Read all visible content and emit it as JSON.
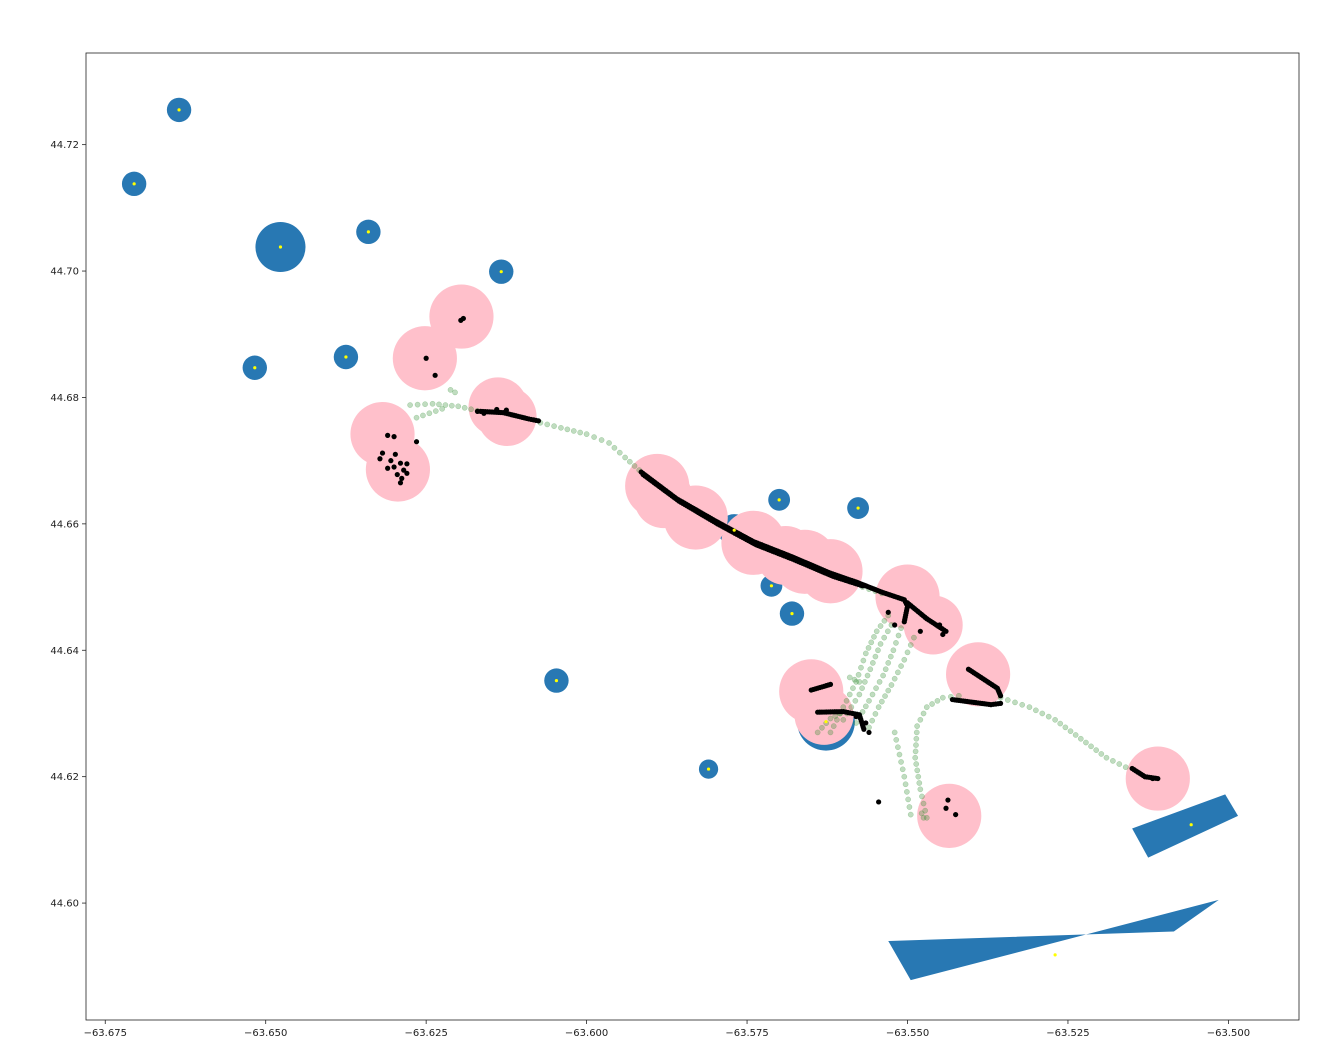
{
  "chart_data": {
    "type": "scatter",
    "title": "",
    "xlabel": "",
    "ylabel": "",
    "xlim": [
      -63.678,
      -63.489
    ],
    "ylim": [
      44.5815,
      44.7345
    ],
    "grid": false,
    "x_ticks": [
      -63.675,
      -63.65,
      -63.625,
      -63.6,
      -63.575,
      -63.55,
      -63.525,
      -63.5
    ],
    "x_tick_labels": [
      "−63.675",
      "−63.650",
      "−63.625",
      "−63.600",
      "−63.575",
      "−63.550",
      "−63.525",
      "−63.500"
    ],
    "y_ticks": [
      44.6,
      44.62,
      44.64,
      44.66,
      44.68,
      44.7,
      44.72
    ],
    "y_tick_labels": [
      "44.60",
      "44.62",
      "44.64",
      "44.66",
      "44.68",
      "44.70",
      "44.72"
    ],
    "colors": {
      "region": "#2878b3",
      "centroid": "#ffff00",
      "cluster": "#ffc0cb",
      "stop_point": "#000000",
      "gps_trace": "#2e8b2e"
    },
    "regions_circles": [
      {
        "x": -63.6635,
        "y": 44.7255,
        "r": 0.0019
      },
      {
        "x": -63.6705,
        "y": 44.7138,
        "r": 0.0019
      },
      {
        "x": -63.6477,
        "y": 44.7038,
        "r": 0.0039
      },
      {
        "x": -63.634,
        "y": 44.7062,
        "r": 0.0019
      },
      {
        "x": -63.6133,
        "y": 44.6999,
        "r": 0.0019
      },
      {
        "x": -63.6517,
        "y": 44.6847,
        "r": 0.0019
      },
      {
        "x": -63.6375,
        "y": 44.6864,
        "r": 0.0019
      },
      {
        "x": -63.57,
        "y": 44.6638,
        "r": 0.0017
      },
      {
        "x": -63.5577,
        "y": 44.6625,
        "r": 0.0017
      },
      {
        "x": -63.5712,
        "y": 44.6502,
        "r": 0.0017
      },
      {
        "x": -63.568,
        "y": 44.6458,
        "r": 0.0019
      },
      {
        "x": -63.6047,
        "y": 44.6352,
        "r": 0.0019
      },
      {
        "x": -63.581,
        "y": 44.6212,
        "r": 0.0015
      },
      {
        "x": -63.5627,
        "y": 44.6287,
        "r": 0.0045
      },
      {
        "x": -63.577,
        "y": 44.659,
        "r": 0.0025
      }
    ],
    "regions_polygons": [
      {
        "points": [
          [
            -63.515,
            44.6118
          ],
          [
            -63.5005,
            44.6172
          ],
          [
            -63.4985,
            44.6138
          ],
          [
            -63.5125,
            44.6072
          ]
        ],
        "centroid": [
          -63.5058,
          44.6124
        ]
      },
      {
        "points": [
          [
            -63.553,
            44.594
          ],
          [
            -63.5085,
            44.5955
          ],
          [
            -63.5015,
            44.6005
          ],
          [
            -63.5495,
            44.5878
          ]
        ],
        "centroid": [
          -63.527,
          44.5918
        ]
      }
    ],
    "clusters": [
      {
        "x": -63.6195,
        "y": 44.6928,
        "r": 0.005
      },
      {
        "x": -63.6252,
        "y": 44.6862,
        "r": 0.005
      },
      {
        "x": -63.6138,
        "y": 44.6785,
        "r": 0.0046
      },
      {
        "x": -63.6124,
        "y": 44.677,
        "r": 0.0046
      },
      {
        "x": -63.6318,
        "y": 44.6742,
        "r": 0.005
      },
      {
        "x": -63.6294,
        "y": 44.6686,
        "r": 0.005
      },
      {
        "x": -63.589,
        "y": 44.666,
        "r": 0.005
      },
      {
        "x": -63.588,
        "y": 44.664,
        "r": 0.0046
      },
      {
        "x": -63.583,
        "y": 44.661,
        "r": 0.005
      },
      {
        "x": -63.574,
        "y": 44.657,
        "r": 0.005
      },
      {
        "x": -63.569,
        "y": 44.655,
        "r": 0.0046
      },
      {
        "x": -63.566,
        "y": 44.654,
        "r": 0.005
      },
      {
        "x": -63.562,
        "y": 44.6525,
        "r": 0.005
      },
      {
        "x": -63.55,
        "y": 44.6485,
        "r": 0.005
      },
      {
        "x": -63.546,
        "y": 44.644,
        "r": 0.0046
      },
      {
        "x": -63.539,
        "y": 44.6362,
        "r": 0.005
      },
      {
        "x": -63.565,
        "y": 44.6335,
        "r": 0.005
      },
      {
        "x": -63.563,
        "y": 44.6297,
        "r": 0.0046
      },
      {
        "x": -63.5435,
        "y": 44.6138,
        "r": 0.005
      },
      {
        "x": -63.511,
        "y": 44.6197,
        "r": 0.005
      }
    ],
    "stop_paths": [
      [
        [
          -63.5915,
          44.6682
        ],
        [
          -63.586,
          44.664
        ],
        [
          -63.58,
          44.6605
        ],
        [
          -63.574,
          44.6572
        ],
        [
          -63.568,
          44.6548
        ],
        [
          -63.562,
          44.6522
        ],
        [
          -63.558,
          44.6508
        ],
        [
          -63.554,
          44.6492
        ],
        [
          -63.5505,
          44.648
        ],
        [
          -63.55,
          44.647
        ],
        [
          -63.5505,
          44.6445
        ]
      ],
      [
        [
          -63.5912,
          44.6678
        ],
        [
          -63.5856,
          44.6636
        ],
        [
          -63.5796,
          44.66
        ],
        [
          -63.5736,
          44.6567
        ],
        [
          -63.5676,
          44.6543
        ],
        [
          -63.5616,
          44.6517
        ],
        [
          -63.557,
          44.6502
        ]
      ],
      [
        [
          -63.55,
          44.6475
        ],
        [
          -63.547,
          44.645
        ],
        [
          -63.544,
          44.643
        ]
      ],
      [
        [
          -63.5405,
          44.637
        ],
        [
          -63.536,
          44.634
        ],
        [
          -63.5355,
          44.6328
        ]
      ],
      [
        [
          -63.543,
          44.6322
        ],
        [
          -63.537,
          44.6314
        ],
        [
          -63.5355,
          44.6316
        ]
      ],
      [
        [
          -63.565,
          44.6337
        ],
        [
          -63.562,
          44.6346
        ]
      ],
      [
        [
          -63.564,
          44.6302
        ],
        [
          -63.56,
          44.6303
        ],
        [
          -63.5575,
          44.6298
        ],
        [
          -63.5568,
          44.6275
        ]
      ],
      [
        [
          -63.6165,
          44.6778
        ],
        [
          -63.613,
          44.6776
        ],
        [
          -63.609,
          44.6766
        ],
        [
          -63.6075,
          44.6763
        ]
      ],
      [
        [
          -63.515,
          44.6213
        ],
        [
          -63.513,
          44.62
        ],
        [
          -63.511,
          44.6197
        ]
      ]
    ],
    "stop_points": [
      [
        -63.6192,
        44.6925
      ],
      [
        -63.6196,
        44.6922
      ],
      [
        -63.625,
        44.6862
      ],
      [
        -63.6236,
        44.6835
      ],
      [
        -63.631,
        44.674
      ],
      [
        -63.63,
        44.6738
      ],
      [
        -63.6318,
        44.6712
      ],
      [
        -63.6322,
        44.6703
      ],
      [
        -63.6305,
        44.67
      ],
      [
        -63.629,
        44.6696
      ],
      [
        -63.628,
        44.6695
      ],
      [
        -63.63,
        44.669
      ],
      [
        -63.6285,
        44.6685
      ],
      [
        -63.6295,
        44.6678
      ],
      [
        -63.629,
        44.6665
      ],
      [
        -63.628,
        44.668
      ],
      [
        -63.6265,
        44.673
      ],
      [
        -63.6298,
        44.671
      ],
      [
        -63.631,
        44.6688
      ],
      [
        -63.6288,
        44.6672
      ],
      [
        -63.617,
        44.6778
      ],
      [
        -63.616,
        44.6775
      ],
      [
        -63.614,
        44.6781
      ],
      [
        -63.6125,
        44.678
      ],
      [
        -63.547,
        44.645
      ],
      [
        -63.545,
        44.644
      ],
      [
        -63.5445,
        44.6425
      ],
      [
        -63.548,
        44.643
      ],
      [
        -63.553,
        44.646
      ],
      [
        -63.552,
        44.644
      ],
      [
        -63.558,
        44.6295
      ],
      [
        -63.5565,
        44.6285
      ],
      [
        -63.556,
        44.627
      ],
      [
        -63.5545,
        44.616
      ],
      [
        -63.544,
        44.615
      ],
      [
        -63.5425,
        44.614
      ],
      [
        -63.5437,
        44.6163
      ],
      [
        -63.513,
        44.62
      ],
      [
        -63.5118,
        44.6197
      ]
    ],
    "gps_traces": [
      [
        [
          -63.6275,
          44.6788
        ],
        [
          -63.624,
          44.679
        ],
        [
          -63.62,
          44.6786
        ],
        [
          -63.617,
          44.6779
        ]
      ],
      [
        [
          -63.6265,
          44.6768
        ],
        [
          -63.6245,
          44.6775
        ],
        [
          -63.6225,
          44.6782
        ]
      ],
      [
        [
          -63.6212,
          44.6812
        ],
        [
          -63.6205,
          44.6808
        ]
      ],
      [
        [
          -63.6072,
          44.676
        ],
        [
          -63.604,
          44.6752
        ],
        [
          -63.6,
          44.6742
        ],
        [
          -63.5965,
          44.6728
        ],
        [
          -63.594,
          44.6705
        ],
        [
          -63.5918,
          44.6685
        ]
      ],
      [
        [
          -63.557,
          44.65
        ],
        [
          -63.554,
          44.649
        ]
      ],
      [
        [
          -63.562,
          44.627
        ],
        [
          -63.56,
          44.631
        ],
        [
          -63.558,
          44.635
        ],
        [
          -63.5565,
          44.6395
        ],
        [
          -63.5548,
          44.643
        ],
        [
          -63.553,
          44.6455
        ]
      ],
      [
        [
          -63.56,
          44.629
        ],
        [
          -63.5575,
          44.633
        ],
        [
          -63.5558,
          44.637
        ],
        [
          -63.5542,
          44.641
        ],
        [
          -63.5525,
          44.644
        ]
      ],
      [
        [
          -63.558,
          44.6285
        ],
        [
          -63.556,
          44.632
        ],
        [
          -63.5538,
          44.636
        ],
        [
          -63.5522,
          44.64
        ],
        [
          -63.551,
          44.6435
        ]
      ],
      [
        [
          -63.556,
          44.6278
        ],
        [
          -63.5545,
          44.631
        ],
        [
          -63.5525,
          44.6345
        ],
        [
          -63.5505,
          44.6385
        ],
        [
          -63.549,
          44.642
        ]
      ],
      [
        [
          -63.564,
          44.627
        ],
        [
          -63.562,
          44.6292
        ],
        [
          -63.5605,
          44.63
        ]
      ],
      [
        [
          -63.5575,
          44.635
        ],
        [
          -63.559,
          44.6357
        ]
      ],
      [
        [
          -63.5495,
          44.614
        ],
        [
          -63.5505,
          44.62
        ],
        [
          -63.552,
          44.627
        ]
      ],
      [
        [
          -63.547,
          44.6135
        ],
        [
          -63.548,
          44.618
        ],
        [
          -63.5488,
          44.623
        ],
        [
          -63.5485,
          44.628
        ],
        [
          -63.547,
          44.631
        ],
        [
          -63.5445,
          44.6325
        ],
        [
          -63.542,
          44.6328
        ]
      ],
      [
        [
          -63.5475,
          44.6135
        ],
        [
          -63.5478,
          44.6142
        ]
      ],
      [
        [
          -63.5355,
          44.6325
        ],
        [
          -63.531,
          44.631
        ],
        [
          -63.527,
          44.629
        ],
        [
          -63.523,
          44.626
        ],
        [
          -63.519,
          44.623
        ],
        [
          -63.516,
          44.6215
        ]
      ]
    ]
  }
}
